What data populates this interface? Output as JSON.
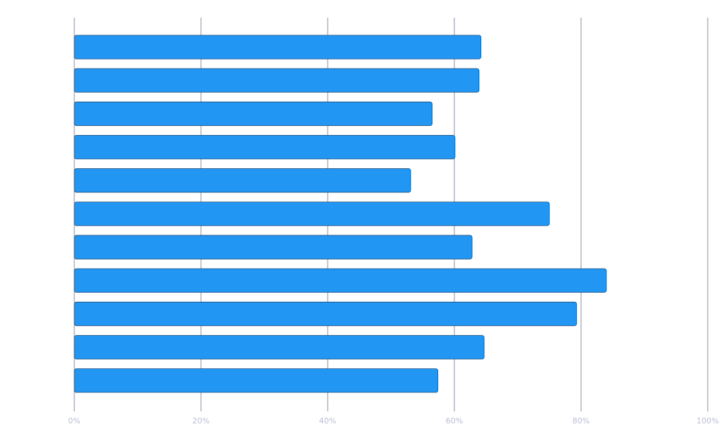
{
  "chart_data": {
    "type": "bar",
    "orientation": "horizontal",
    "categories": [
      null,
      null,
      null,
      null,
      null,
      null,
      null,
      null,
      null,
      null,
      null
    ],
    "values": [
      64.2,
      63.9,
      56.5,
      60.1,
      53.1,
      75.0,
      62.8,
      84.0,
      79.3,
      64.7,
      57.4
    ],
    "color": "#2196f3",
    "xlim": [
      0,
      100
    ],
    "xticks": [
      {
        "value": 0,
        "label": "0%"
      },
      {
        "value": 20,
        "label": "20%"
      },
      {
        "value": 40,
        "label": "40%"
      },
      {
        "value": 60,
        "label": "60%"
      },
      {
        "value": 80,
        "label": "80%"
      },
      {
        "value": 100,
        "label": "100%"
      }
    ],
    "grid": true
  }
}
